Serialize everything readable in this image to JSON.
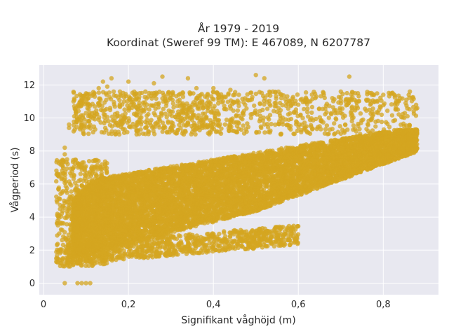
{
  "chart_data": {
    "type": "scatter",
    "title_line1": "År 1979 - 2019",
    "title_line2": "Koordinat (Sweref 99 TM): E 467089, N 6207787",
    "xlabel": "Signifikant våghöjd (m)",
    "ylabel": "Vågperiod (s)",
    "xlim": [
      -0.01,
      0.93
    ],
    "ylim": [
      -0.7,
      13.2
    ],
    "x_ticks": [
      0,
      0.2,
      0.4,
      0.6,
      0.8
    ],
    "x_tick_labels": [
      "0",
      "0,2",
      "0,4",
      "0,6",
      "0,8"
    ],
    "y_ticks": [
      0,
      2,
      4,
      6,
      8,
      10,
      12
    ],
    "y_tick_labels": [
      "0",
      "2",
      "4",
      "6",
      "8",
      "10",
      "12"
    ],
    "grid": true,
    "marker_color": "#d4a520",
    "background_color": "#e8e8f0",
    "series": [
      {
        "values_description_free": true,
        "points": [
          [
            0.05,
            0.0
          ],
          [
            0.08,
            0.0
          ],
          [
            0.09,
            0.0
          ],
          [
            0.1,
            0.0
          ],
          [
            0.11,
            0.0
          ],
          [
            0.03,
            1.3
          ],
          [
            0.03,
            1.5
          ],
          [
            0.04,
            1.2
          ],
          [
            0.04,
            6.6
          ],
          [
            0.05,
            7.8
          ],
          [
            0.05,
            8.2
          ],
          [
            0.06,
            9.6
          ],
          [
            0.06,
            9.4
          ],
          [
            0.07,
            1.1
          ],
          [
            0.08,
            3.4
          ],
          [
            0.09,
            5.9
          ],
          [
            0.1,
            10.3
          ],
          [
            0.11,
            10.1
          ],
          [
            0.12,
            11.5
          ],
          [
            0.13,
            11.8
          ],
          [
            0.14,
            12.2
          ],
          [
            0.15,
            11.9
          ],
          [
            0.16,
            12.4
          ],
          [
            0.18,
            11.6
          ],
          [
            0.2,
            12.2
          ],
          [
            0.22,
            11.2
          ],
          [
            0.24,
            11.6
          ],
          [
            0.26,
            12.1
          ],
          [
            0.28,
            12.5
          ],
          [
            0.3,
            11.4
          ],
          [
            0.32,
            11.1
          ],
          [
            0.34,
            12.4
          ],
          [
            0.36,
            11.8
          ],
          [
            0.38,
            11.3
          ],
          [
            0.4,
            11.8
          ],
          [
            0.42,
            11.2
          ],
          [
            0.44,
            11.7
          ],
          [
            0.46,
            11.4
          ],
          [
            0.48,
            11.1
          ],
          [
            0.5,
            12.6
          ],
          [
            0.52,
            12.4
          ],
          [
            0.54,
            11.6
          ],
          [
            0.56,
            11.2
          ],
          [
            0.58,
            11.0
          ],
          [
            0.6,
            10.8
          ],
          [
            0.62,
            11.1
          ],
          [
            0.64,
            11.2
          ],
          [
            0.66,
            11.4
          ],
          [
            0.68,
            11.2
          ],
          [
            0.7,
            11.6
          ],
          [
            0.72,
            12.5
          ],
          [
            0.74,
            10.6
          ],
          [
            0.76,
            11.1
          ],
          [
            0.78,
            11.0
          ],
          [
            0.8,
            11.4
          ],
          [
            0.82,
            11.5
          ],
          [
            0.84,
            11.2
          ],
          [
            0.86,
            11.4
          ],
          [
            0.88,
            10.6
          ],
          [
            0.5,
            3.0
          ],
          [
            0.52,
            2.5
          ],
          [
            0.58,
            2.6
          ],
          [
            0.47,
            2.7
          ],
          [
            0.45,
            3.2
          ]
        ]
      }
    ]
  }
}
